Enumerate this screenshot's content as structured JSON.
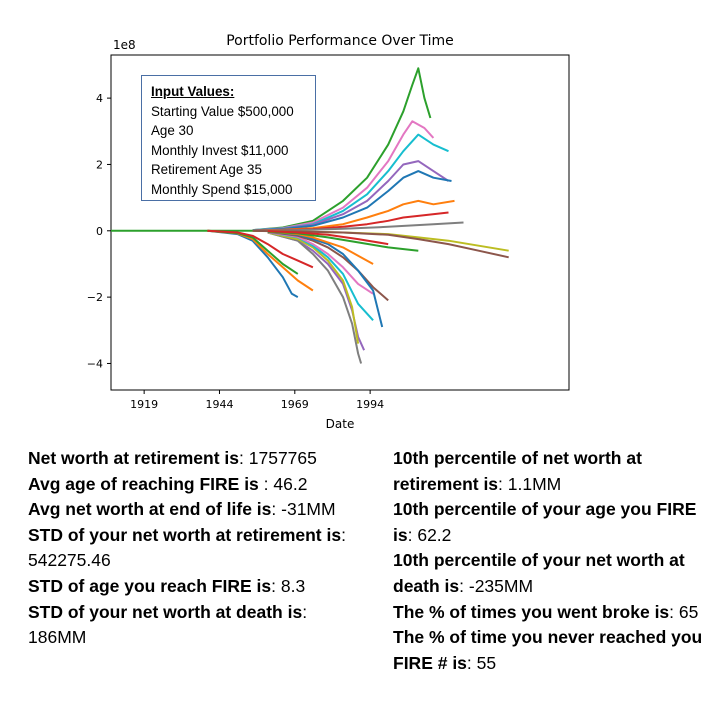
{
  "chart_data": {
    "type": "line",
    "title": "Portfolio Performance Over Time",
    "xlabel": "Date",
    "ylabel": "",
    "y_scale_label": "1e8",
    "x_ticks": [
      "1919",
      "1944",
      "1969",
      "1994"
    ],
    "y_ticks": [
      "4",
      "2",
      "0",
      "−2",
      "−4"
    ],
    "xlim": [
      1908,
      2060
    ],
    "ylim": [
      -4.8,
      5.3
    ],
    "grid": false,
    "series": [
      {
        "color": "#2ca02c",
        "values": [
          [
            1955,
            0.02
          ],
          [
            1965,
            0.1
          ],
          [
            1975,
            0.3
          ],
          [
            1985,
            0.9
          ],
          [
            1993,
            1.6
          ],
          [
            2000,
            2.6
          ],
          [
            2005,
            3.6
          ],
          [
            2008,
            4.4
          ],
          [
            2010,
            4.9
          ],
          [
            2012,
            4.0
          ],
          [
            2014,
            3.4
          ]
        ]
      },
      {
        "color": "#e377c2",
        "values": [
          [
            1955,
            0.02
          ],
          [
            1965,
            0.08
          ],
          [
            1975,
            0.25
          ],
          [
            1985,
            0.7
          ],
          [
            1993,
            1.3
          ],
          [
            2000,
            2.1
          ],
          [
            2005,
            2.9
          ],
          [
            2008,
            3.3
          ],
          [
            2012,
            3.1
          ],
          [
            2015,
            2.8
          ]
        ]
      },
      {
        "color": "#17becf",
        "values": [
          [
            1955,
            0.02
          ],
          [
            1965,
            0.07
          ],
          [
            1975,
            0.2
          ],
          [
            1985,
            0.6
          ],
          [
            1993,
            1.1
          ],
          [
            2000,
            1.8
          ],
          [
            2005,
            2.4
          ],
          [
            2010,
            2.9
          ],
          [
            2015,
            2.6
          ],
          [
            2020,
            2.4
          ]
        ]
      },
      {
        "color": "#9467bd",
        "values": [
          [
            1955,
            0.01
          ],
          [
            1965,
            0.06
          ],
          [
            1975,
            0.18
          ],
          [
            1985,
            0.5
          ],
          [
            1993,
            0.9
          ],
          [
            2000,
            1.5
          ],
          [
            2005,
            2.0
          ],
          [
            2010,
            2.1
          ],
          [
            2015,
            1.8
          ],
          [
            2020,
            1.5
          ]
        ]
      },
      {
        "color": "#1f77b4",
        "values": [
          [
            1955,
            0.01
          ],
          [
            1965,
            0.05
          ],
          [
            1975,
            0.15
          ],
          [
            1985,
            0.4
          ],
          [
            1993,
            0.7
          ],
          [
            2000,
            1.2
          ],
          [
            2005,
            1.6
          ],
          [
            2010,
            1.8
          ],
          [
            2015,
            1.6
          ],
          [
            2021,
            1.5
          ]
        ]
      },
      {
        "color": "#ff7f0e",
        "values": [
          [
            1955,
            0.01
          ],
          [
            1965,
            0.03
          ],
          [
            1975,
            0.08
          ],
          [
            1985,
            0.2
          ],
          [
            1993,
            0.4
          ],
          [
            2000,
            0.6
          ],
          [
            2005,
            0.8
          ],
          [
            2010,
            0.9
          ],
          [
            2015,
            0.8
          ],
          [
            2022,
            0.9
          ]
        ]
      },
      {
        "color": "#d62728",
        "values": [
          [
            1955,
            0.01
          ],
          [
            1965,
            0.02
          ],
          [
            1975,
            0.05
          ],
          [
            1985,
            0.12
          ],
          [
            1993,
            0.2
          ],
          [
            2000,
            0.3
          ],
          [
            2005,
            0.4
          ],
          [
            2010,
            0.45
          ],
          [
            2020,
            0.55
          ]
        ]
      },
      {
        "color": "#7f7f7f",
        "values": [
          [
            1955,
            0.0
          ],
          [
            1970,
            0.02
          ],
          [
            1985,
            0.06
          ],
          [
            2000,
            0.12
          ],
          [
            2015,
            0.2
          ],
          [
            2025,
            0.25
          ]
        ]
      },
      {
        "color": "#bcbd22",
        "values": [
          [
            1955,
            0.0
          ],
          [
            1970,
            -0.02
          ],
          [
            1985,
            -0.05
          ],
          [
            2000,
            -0.1
          ],
          [
            2010,
            -0.2
          ],
          [
            2020,
            -0.3
          ],
          [
            2030,
            -0.45
          ],
          [
            2040,
            -0.6
          ]
        ]
      },
      {
        "color": "#8c564b",
        "values": [
          [
            1955,
            0.0
          ],
          [
            1970,
            -0.02
          ],
          [
            1985,
            -0.05
          ],
          [
            2000,
            -0.12
          ],
          [
            2010,
            -0.25
          ],
          [
            2020,
            -0.4
          ],
          [
            2030,
            -0.6
          ],
          [
            2040,
            -0.8
          ]
        ]
      },
      {
        "color": "#1f77b4",
        "values": [
          [
            1940,
            0.0
          ],
          [
            1950,
            -0.1
          ],
          [
            1955,
            -0.3
          ],
          [
            1960,
            -0.8
          ],
          [
            1965,
            -1.4
          ],
          [
            1968,
            -1.9
          ],
          [
            1970,
            -2.0
          ]
        ]
      },
      {
        "color": "#ff7f0e",
        "values": [
          [
            1940,
            0.0
          ],
          [
            1950,
            -0.08
          ],
          [
            1955,
            -0.25
          ],
          [
            1960,
            -0.7
          ],
          [
            1965,
            -1.1
          ],
          [
            1970,
            -1.5
          ],
          [
            1975,
            -1.8
          ]
        ]
      },
      {
        "color": "#2ca02c",
        "values": [
          [
            1940,
            0.0
          ],
          [
            1950,
            -0.07
          ],
          [
            1955,
            -0.2
          ],
          [
            1960,
            -0.6
          ],
          [
            1965,
            -1.0
          ],
          [
            1970,
            -1.3
          ]
        ]
      },
      {
        "color": "#d62728",
        "values": [
          [
            1940,
            0.0
          ],
          [
            1950,
            -0.05
          ],
          [
            1955,
            -0.15
          ],
          [
            1960,
            -0.4
          ],
          [
            1965,
            -0.7
          ],
          [
            1970,
            -0.9
          ],
          [
            1975,
            -1.1
          ]
        ]
      },
      {
        "color": "#9467bd",
        "values": [
          [
            1960,
            -0.05
          ],
          [
            1970,
            -0.3
          ],
          [
            1975,
            -0.6
          ],
          [
            1980,
            -1.0
          ],
          [
            1985,
            -1.6
          ],
          [
            1988,
            -2.4
          ],
          [
            1990,
            -3.2
          ],
          [
            1992,
            -3.6
          ]
        ]
      },
      {
        "color": "#7f7f7f",
        "values": [
          [
            1960,
            -0.05
          ],
          [
            1970,
            -0.3
          ],
          [
            1975,
            -0.7
          ],
          [
            1980,
            -1.2
          ],
          [
            1985,
            -2.0
          ],
          [
            1988,
            -2.8
          ],
          [
            1990,
            -3.7
          ],
          [
            1991,
            -4.0
          ]
        ]
      },
      {
        "color": "#bcbd22",
        "values": [
          [
            1960,
            -0.05
          ],
          [
            1970,
            -0.25
          ],
          [
            1975,
            -0.5
          ],
          [
            1980,
            -0.9
          ],
          [
            1985,
            -1.5
          ],
          [
            1988,
            -2.3
          ],
          [
            1990,
            -3.4
          ]
        ]
      },
      {
        "color": "#17becf",
        "values": [
          [
            1960,
            -0.04
          ],
          [
            1970,
            -0.2
          ],
          [
            1975,
            -0.45
          ],
          [
            1980,
            -0.8
          ],
          [
            1985,
            -1.3
          ],
          [
            1990,
            -2.2
          ],
          [
            1995,
            -2.7
          ]
        ]
      },
      {
        "color": "#e377c2",
        "values": [
          [
            1960,
            -0.04
          ],
          [
            1970,
            -0.18
          ],
          [
            1975,
            -0.4
          ],
          [
            1980,
            -0.7
          ],
          [
            1985,
            -1.1
          ],
          [
            1990,
            -1.6
          ],
          [
            1995,
            -1.9
          ]
        ]
      },
      {
        "color": "#8c564b",
        "values": [
          [
            1960,
            -0.03
          ],
          [
            1970,
            -0.15
          ],
          [
            1975,
            -0.3
          ],
          [
            1980,
            -0.5
          ],
          [
            1985,
            -0.8
          ],
          [
            1990,
            -1.2
          ],
          [
            1995,
            -1.7
          ],
          [
            2000,
            -2.1
          ]
        ]
      },
      {
        "color": "#1f77b4",
        "values": [
          [
            1960,
            -0.03
          ],
          [
            1970,
            -0.12
          ],
          [
            1975,
            -0.25
          ],
          [
            1980,
            -0.4
          ],
          [
            1985,
            -0.7
          ],
          [
            1990,
            -1.2
          ],
          [
            1995,
            -1.8
          ],
          [
            1998,
            -2.9
          ]
        ]
      },
      {
        "color": "#ff7f0e",
        "values": [
          [
            1960,
            -0.02
          ],
          [
            1970,
            -0.1
          ],
          [
            1975,
            -0.2
          ],
          [
            1980,
            -0.35
          ],
          [
            1985,
            -0.5
          ],
          [
            1990,
            -0.75
          ],
          [
            1995,
            -1.0
          ]
        ]
      },
      {
        "color": "#2ca02c",
        "values": [
          [
            1960,
            -0.02
          ],
          [
            1970,
            -0.08
          ],
          [
            1980,
            -0.2
          ],
          [
            1990,
            -0.35
          ],
          [
            2000,
            -0.5
          ],
          [
            2010,
            -0.6
          ]
        ]
      },
      {
        "color": "#d62728",
        "values": [
          [
            1960,
            -0.01
          ],
          [
            1970,
            -0.05
          ],
          [
            1980,
            -0.12
          ],
          [
            1990,
            -0.25
          ],
          [
            2000,
            -0.4
          ]
        ]
      }
    ]
  },
  "input_box": {
    "heading": "Input Values:",
    "lines": [
      "Starting Value $500,000",
      "Age 30",
      "Monthly  Invest $11,000",
      "Retirement Age 35",
      "Monthly  Spend $15,000"
    ]
  },
  "stats_left": [
    {
      "label": "Net worth at retirement is",
      "value": ": 1757765"
    },
    {
      "label": "Avg age of reaching FIRE is ",
      "value": ": 46.2"
    },
    {
      "label": "Avg net worth at end of life is",
      "value": ": -31MM"
    },
    {
      "label": "STD of your net worth at retirement is",
      "value": ": 542275.46"
    },
    {
      "label": "STD of age you reach FIRE is",
      "value": ":  8.3"
    },
    {
      "label": "STD of your net worth at death is",
      "value": ": 186MM"
    }
  ],
  "stats_right": [
    {
      "label": "10th percentile of net worth at retirement is",
      "value": ": 1.1MM"
    },
    {
      "label": "10th percentile of your age you FIRE is",
      "value": ": 62.2"
    },
    {
      "label": "10th percentile of your net worth at death is",
      "value": ": -235MM"
    },
    {
      "label": "The % of times you went broke is",
      "value": ": 65"
    },
    {
      "label": "The % of time you never reached you FIRE # is",
      "value": ": 55"
    }
  ]
}
